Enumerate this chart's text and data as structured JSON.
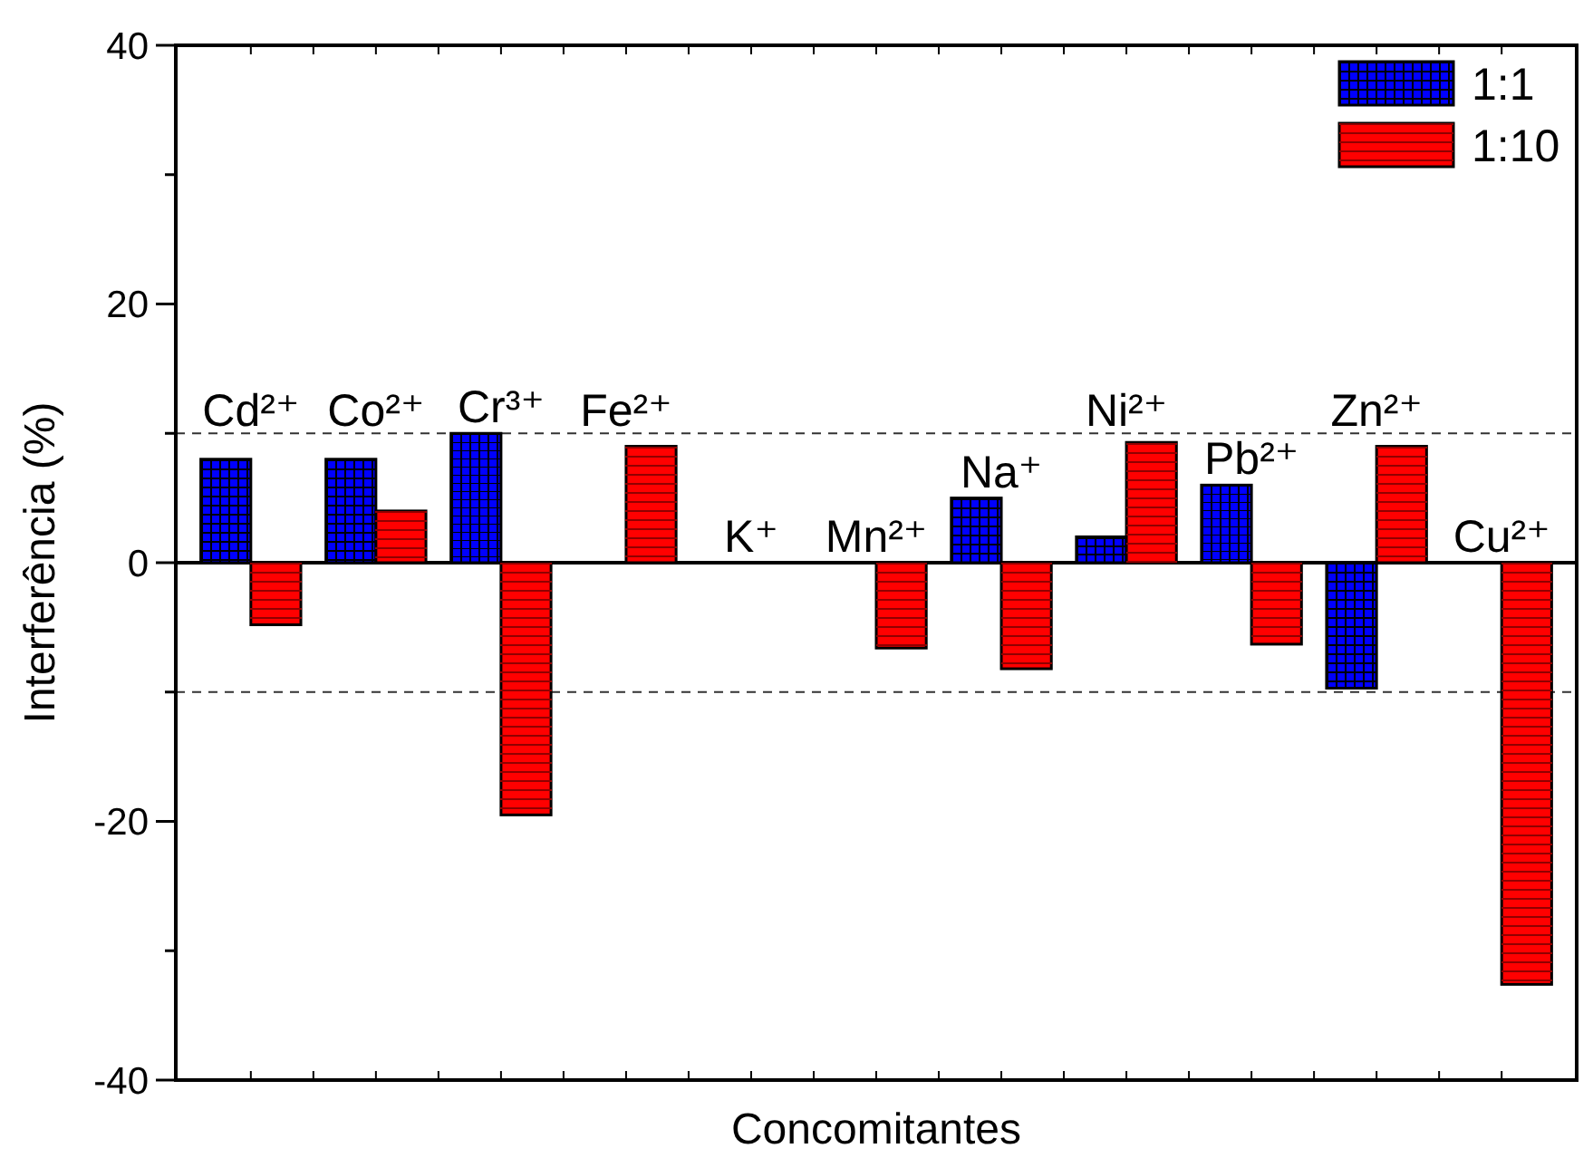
{
  "chart_data": {
    "type": "bar",
    "xlabel": "Concomitantes",
    "ylabel": "Interferência (%)",
    "categories": [
      "Cd²⁺",
      "Co²⁺",
      "Cr³⁺",
      "Fe²⁺",
      "K⁺",
      "Mn²⁺",
      "Na⁺",
      "Ni²⁺",
      "Pb²⁺",
      "Zn²⁺",
      "Cu²⁺"
    ],
    "series": [
      {
        "name": "1:1",
        "color": "#0000ff",
        "values": [
          8,
          8,
          10,
          0,
          0,
          0,
          5,
          2,
          6,
          -9.7,
          0
        ]
      },
      {
        "name": "1:10",
        "color": "#ff0000",
        "values": [
          -4.8,
          4,
          -19.5,
          9,
          0,
          -6.6,
          -8.2,
          9.3,
          -6.3,
          9,
          -32.6
        ]
      }
    ],
    "ylim": [
      -40,
      40
    ],
    "yticks": [
      -40,
      {
        "value": -30,
        "label": null
      },
      -20,
      {
        "value": -10,
        "label": null
      },
      0,
      {
        "value": 10,
        "label": null
      },
      20,
      {
        "value": 30,
        "label": null
      },
      40
    ],
    "ref_lines": [
      {
        "axis": "y",
        "value": 10,
        "line_style": "dashed",
        "color": "#333333"
      },
      {
        "axis": "y",
        "value": -10,
        "line_style": "dashed",
        "color": "#333333"
      },
      {
        "axis": "y",
        "value": 0,
        "line_style": "solid",
        "color": "#000000"
      }
    ],
    "legend": "top right"
  }
}
